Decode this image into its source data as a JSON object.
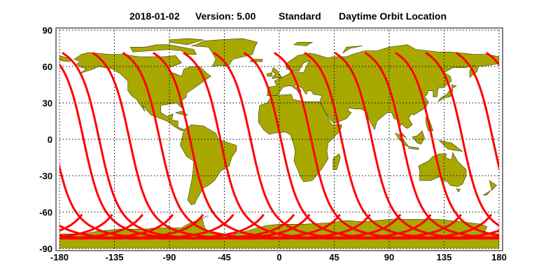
{
  "title": {
    "date": "2018-01-02",
    "version": "Version: 5.00",
    "mode": "Standard",
    "product": "Daytime Orbit Location"
  },
  "chart_data": {
    "type": "map",
    "projection": "equirectangular",
    "xlim": [
      -180,
      180
    ],
    "ylim": [
      -90,
      90
    ],
    "x_ticks": [
      "-180",
      "-135",
      "-90",
      "-45",
      "0",
      "45",
      "90",
      "135",
      "180"
    ],
    "y_ticks": [
      "90",
      "60",
      "30",
      "0",
      "-30",
      "-60",
      "-90"
    ],
    "grid": "dotted",
    "land_color": "#a8a800",
    "track_color": "#ff0000",
    "tracks": {
      "direction": "ascending",
      "lat_range": [
        -62,
        72
      ],
      "equator_crossing_lon": [
        -147.5,
        -122.7,
        -97.9,
        -73.1,
        -48.3,
        -23.5,
        1.3,
        26.1,
        50.9,
        75.7,
        100.5,
        125.3,
        150.1,
        174.9,
        -160.3
      ]
    }
  }
}
